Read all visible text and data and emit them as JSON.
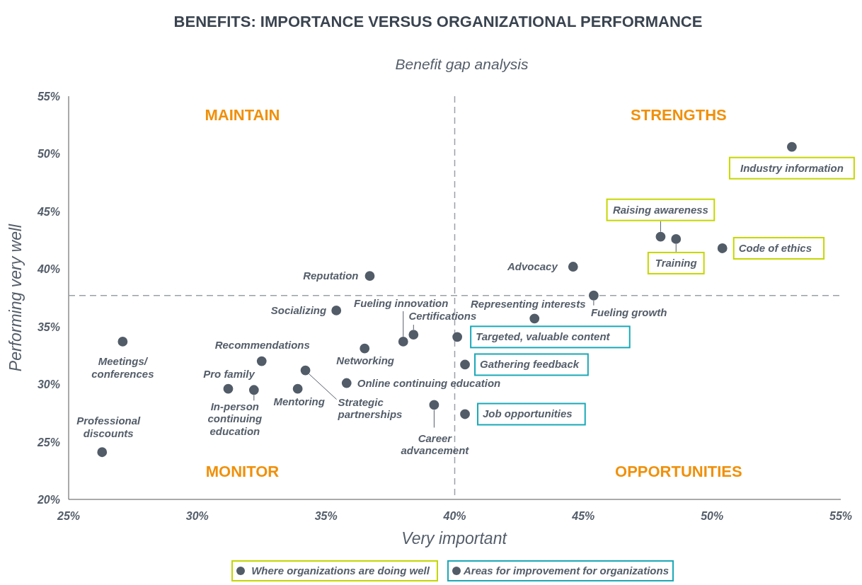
{
  "chart_data": {
    "type": "scatter",
    "title": "BENEFITS: IMPORTANCE VERSUS ORGANIZATIONAL PERFORMANCE",
    "subtitle": "Benefit gap analysis",
    "xlabel": "Very important",
    "ylabel": "Performing very well",
    "xlim": [
      25,
      55
    ],
    "ylim": [
      20,
      55
    ],
    "xticks": [
      {
        "value": 25,
        "label": "25%"
      },
      {
        "value": 30,
        "label": "30%"
      },
      {
        "value": 35,
        "label": "35%"
      },
      {
        "value": 40,
        "label": "40%"
      },
      {
        "value": 45,
        "label": "45%"
      },
      {
        "value": 50,
        "label": "50%"
      },
      {
        "value": 55,
        "label": "55%"
      }
    ],
    "yticks": [
      {
        "value": 20,
        "label": "20%"
      },
      {
        "value": 25,
        "label": "25%"
      },
      {
        "value": 30,
        "label": "30%"
      },
      {
        "value": 35,
        "label": "35%"
      },
      {
        "value": 40,
        "label": "40%"
      },
      {
        "value": 45,
        "label": "45%"
      },
      {
        "value": 50,
        "label": "50%"
      },
      {
        "value": 55,
        "label": "55%"
      }
    ],
    "grid": false,
    "marker": "circle",
    "legend": "bottom",
    "ref_lines": [
      {
        "axis": "x",
        "value": 40,
        "color": "#9aa0a6",
        "line_style": "dashed"
      },
      {
        "axis": "y",
        "value": 37.7,
        "color": "#9aa0a6",
        "line_style": "dashed"
      }
    ],
    "series": [
      {
        "color": "#525c68",
        "x": [
          44.6,
          45.4,
          43.1,
          39.2,
          38.4,
          38.0,
          36.7,
          35.4,
          36.5,
          35.8,
          34.2,
          33.9,
          32.5,
          32.2,
          31.2,
          27.1,
          26.3
        ],
        "values": [
          40.2,
          37.7,
          35.7,
          28.2,
          34.3,
          33.7,
          39.4,
          36.4,
          33.1,
          30.1,
          31.2,
          29.6,
          32.0,
          29.5,
          29.6,
          33.7,
          24.1
        ]
      },
      {
        "name": "Where organizations are doing well",
        "color": "#525c68",
        "x": [
          53.1,
          48.0,
          48.6,
          50.4
        ],
        "values": [
          50.6,
          42.8,
          42.6,
          41.8
        ]
      },
      {
        "name": "Areas for improvement for organizations",
        "color": "#525c68",
        "x": [
          40.1,
          40.4,
          40.4
        ],
        "values": [
          34.1,
          31.7,
          27.4
        ]
      }
    ],
    "annotations": [
      "MAINTAIN",
      "STRENGTHS",
      "MONITOR",
      "OPPORTUNITIES",
      {
        "text": "Industry information",
        "x": 53.1,
        "y": 50.6
      },
      {
        "text": "Raising awareness",
        "x": 48.0,
        "y": 42.8
      },
      {
        "text": "Training",
        "x": 48.6,
        "y": 42.6
      },
      {
        "text": "Code of ethics",
        "x": 50.4,
        "y": 41.8
      },
      {
        "text": "Advocacy",
        "x": 44.6,
        "y": 40.2
      },
      {
        "text": "Fueling growth",
        "x": 45.4,
        "y": 37.7
      },
      {
        "text": "Representing interests",
        "x": 43.1,
        "y": 35.7
      },
      {
        "text": "Targeted, valuable content",
        "x": 40.1,
        "y": 34.1
      },
      {
        "text": "Gathering feedback",
        "x": 40.4,
        "y": 31.7
      },
      {
        "text": "Job opportunities",
        "x": 40.4,
        "y": 27.4
      },
      {
        "text": "Career\nadvancement",
        "x": 39.2,
        "y": 28.2
      },
      {
        "text": "Certifications",
        "x": 38.4,
        "y": 34.3
      },
      {
        "text": "Fueling innovation",
        "x": 38.0,
        "y": 33.7
      },
      {
        "text": "Reputation",
        "x": 36.7,
        "y": 39.4
      },
      {
        "text": "Socializing",
        "x": 35.4,
        "y": 36.4
      },
      {
        "text": "Networking",
        "x": 36.5,
        "y": 33.1
      },
      {
        "text": "Online continuing education",
        "x": 35.8,
        "y": 30.1
      },
      {
        "text": "Strategic\npartnerships",
        "x": 34.2,
        "y": 31.2
      },
      {
        "text": "Mentoring",
        "x": 33.9,
        "y": 29.6
      },
      {
        "text": "Recommendations",
        "x": 32.5,
        "y": 32.0
      },
      {
        "text": "In-person\ncontinuing\neducation",
        "x": 32.2,
        "y": 29.5
      },
      {
        "text": "Pro family",
        "x": 31.2,
        "y": 29.6
      },
      {
        "text": "Meetings/\nconferences",
        "x": 27.1,
        "y": 33.7
      },
      {
        "text": "Professional\ndiscounts",
        "x": 26.3,
        "y": 24.1
      }
    ]
  }
}
